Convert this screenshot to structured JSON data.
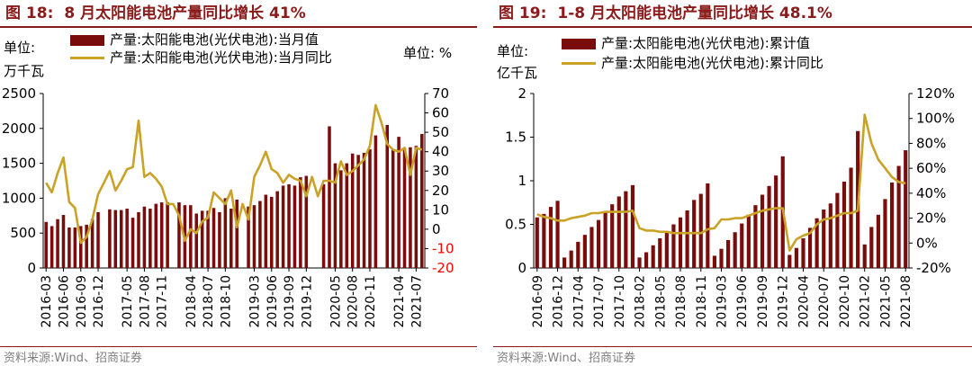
{
  "colors": {
    "accent": "#8B1A1A",
    "bar": "#7B0C0C",
    "line": "#C9A227",
    "neg_axis": "#FF0000",
    "source": "#7f7f7f"
  },
  "charts": [
    {
      "title_label": "图 18:",
      "title_text": "8 月太阳能电池产量同比增长 41%",
      "unit_left_1": "单位:",
      "unit_left_2": "万千瓦",
      "unit_right": "单位:  %",
      "legend_bar": "产量:太阳能电池(光伏电池):当月值",
      "legend_line": "产量:太阳能电池(光伏电池):当月同比",
      "source": "资料来源:Wind、招商证券"
    },
    {
      "title_label": "图 19:",
      "title_text": "1-8 月太阳能电池产量同比增长 48.1%",
      "unit_left_1": "单位:",
      "unit_left_2": "亿千瓦",
      "legend_bar": "产量:太阳能电池(光伏电池):累计值",
      "legend_line": "产量:太阳能电池(光伏电池):累计同比",
      "source": "资料来源:Wind、招商证券"
    }
  ],
  "chart_data": [
    {
      "type": "bar+line",
      "title": "8 月太阳能电池产量同比增长 41%",
      "x": [
        "2016-03",
        "2016-04",
        "2016-05",
        "2016-06",
        "2016-07",
        "2016-08",
        "2016-09",
        "2016-10",
        "2016-11",
        "2016-12",
        "2017-01",
        "2017-02",
        "2017-03",
        "2017-04",
        "2017-05",
        "2017-06",
        "2017-07",
        "2017-08",
        "2017-09",
        "2017-10",
        "2017-11",
        "2017-12",
        "2018-01",
        "2018-02",
        "2018-03",
        "2018-04",
        "2018-05",
        "2018-06",
        "2018-07",
        "2018-08",
        "2018-09",
        "2018-10",
        "2018-11",
        "2018-12",
        "2019-01",
        "2019-02",
        "2019-03",
        "2019-04",
        "2019-05",
        "2019-06",
        "2019-07",
        "2019-08",
        "2019-09",
        "2019-10",
        "2019-11",
        "2019-12",
        "2020-01",
        "2020-02",
        "2020-03",
        "2020-04",
        "2020-05",
        "2020-06",
        "2020-07",
        "2020-08",
        "2020-09",
        "2020-10",
        "2020-11",
        "2020-12",
        "2021-01",
        "2021-02",
        "2021-03",
        "2021-04",
        "2021-05",
        "2021-06",
        "2021-07",
        "2021-08"
      ],
      "xticks": [
        "2016-03",
        "2016-06",
        "2016-09",
        "2016-12",
        "2017-05",
        "2017-08",
        "2017-11",
        "2018-04",
        "2018-07",
        "2018-10",
        "2019-03",
        "2019-06",
        "2019-09",
        "2019-12",
        "2020-05",
        "2020-08",
        "2020-11",
        "2021-04",
        "2021-07"
      ],
      "series": [
        {
          "name": "产量:太阳能电池(光伏电池):当月值",
          "type": "bar",
          "axis": "left",
          "values": [
            660,
            600,
            700,
            760,
            580,
            580,
            600,
            620,
            700,
            800,
            null,
            840,
            830,
            830,
            850,
            720,
            800,
            880,
            850,
            920,
            940,
            940,
            null,
            940,
            900,
            900,
            780,
            820,
            820,
            860,
            800,
            1000,
            850,
            980,
            null,
            880,
            900,
            960,
            1050,
            1020,
            1100,
            1180,
            1200,
            1180,
            1300,
            1320,
            null,
            null,
            1200,
            2030,
            1500,
            1400,
            1500,
            1640,
            1620,
            1650,
            1700,
            1900,
            null,
            2050,
            1700,
            1880,
            1720,
            1730,
            1750,
            1920
          ]
        },
        {
          "name": "产量:太阳能电池(光伏电池):当月同比",
          "type": "line",
          "axis": "right",
          "values": [
            24,
            19,
            29,
            37,
            14,
            11,
            -7,
            -4,
            5,
            18,
            24,
            30,
            20,
            25,
            31,
            32,
            56,
            27,
            29,
            26,
            22,
            13,
            13,
            7,
            -6,
            0,
            -2,
            4,
            6,
            19,
            16,
            13,
            20,
            1,
            13,
            5,
            27,
            33,
            40,
            31,
            29,
            24,
            28,
            26,
            25,
            17,
            27,
            17,
            25,
            25,
            24,
            35,
            28,
            30,
            33,
            36,
            43,
            64,
            55,
            44,
            41,
            40,
            42,
            28,
            42,
            41
          ]
        }
      ],
      "y_left": {
        "ticks": [
          0,
          500,
          1000,
          1500,
          2000,
          2500
        ],
        "ylim": [
          0,
          2500
        ]
      },
      "y_right": {
        "ticks": [
          -20,
          -10,
          0,
          10,
          20,
          30,
          40,
          50,
          60,
          70
        ],
        "ylim": [
          -20,
          70
        ],
        "negative_color": "#FF0000"
      }
    },
    {
      "type": "bar+line",
      "title": "1-8 月太阳能电池产量同比增长 48.1%",
      "x": [
        "2016-09",
        "2016-10",
        "2016-11",
        "2016-12",
        "2017-02",
        "2017-03",
        "2017-04",
        "2017-05",
        "2017-06",
        "2017-07",
        "2017-08",
        "2017-09",
        "2017-10",
        "2017-11",
        "2017-12",
        "2018-02",
        "2018-03",
        "2018-04",
        "2018-05",
        "2018-06",
        "2018-07",
        "2018-08",
        "2018-09",
        "2018-10",
        "2018-11",
        "2018-12",
        "2019-02",
        "2019-03",
        "2019-04",
        "2019-05",
        "2019-06",
        "2019-07",
        "2019-08",
        "2019-09",
        "2019-10",
        "2019-11",
        "2019-12",
        "2020-02",
        "2020-03",
        "2020-04",
        "2020-05",
        "2020-06",
        "2020-07",
        "2020-08",
        "2020-09",
        "2020-10",
        "2020-11",
        "2020-12",
        "2021-02",
        "2021-03",
        "2021-04",
        "2021-05",
        "2021-06",
        "2021-07",
        "2021-08"
      ],
      "xticks": [
        "2016-09",
        "2016-12",
        "2017-04",
        "2017-07",
        "2017-10",
        "2018-02",
        "2018-05",
        "2018-08",
        "2018-11",
        "2019-03",
        "2019-06",
        "2019-09",
        "2019-12",
        "2020-04",
        "2020-07",
        "2020-10",
        "2021-02",
        "2021-05",
        "2021-08"
      ],
      "series": [
        {
          "name": "产量:太阳能电池(光伏电池):累计值",
          "type": "bar",
          "axis": "left",
          "values": [
            0.58,
            0.62,
            0.7,
            0.77,
            0.12,
            0.2,
            0.3,
            0.38,
            0.47,
            0.55,
            0.64,
            0.73,
            0.82,
            0.88,
            0.95,
            0.12,
            0.18,
            0.26,
            0.34,
            0.42,
            0.5,
            0.58,
            0.66,
            0.78,
            0.85,
            0.97,
            0.14,
            0.22,
            0.32,
            0.41,
            0.51,
            0.61,
            0.72,
            0.84,
            0.94,
            1.06,
            1.28,
            0.15,
            0.23,
            0.34,
            0.46,
            0.57,
            0.67,
            0.74,
            0.86,
            0.99,
            1.15,
            1.57,
            0.27,
            0.47,
            0.61,
            0.79,
            0.98,
            1.17,
            1.35
          ]
        },
        {
          "name": "产量:太阳能电池(光伏电池):累计同比",
          "type": "line",
          "axis": "right",
          "values": [
            23,
            21,
            20,
            18,
            18,
            20,
            21,
            22,
            24,
            24,
            25,
            25,
            25,
            25,
            26,
            12,
            10,
            10,
            9,
            9,
            8,
            8,
            8,
            8,
            8,
            11,
            12,
            19,
            19,
            20,
            20,
            22,
            24,
            26,
            27,
            28,
            28,
            -6,
            3,
            6,
            8,
            15,
            19,
            20,
            22,
            24,
            24,
            26,
            103,
            80,
            67,
            60,
            53,
            49,
            48
          ]
        }
      ],
      "y_left": {
        "ticks": [
          0,
          0.5,
          1,
          1.5,
          2
        ],
        "ylim": [
          0,
          2
        ]
      },
      "y_right": {
        "ticks": [
          "-20%",
          "0%",
          "20%",
          "40%",
          "60%",
          "80%",
          "100%",
          "120%"
        ],
        "ylim": [
          -20,
          120
        ]
      }
    }
  ]
}
